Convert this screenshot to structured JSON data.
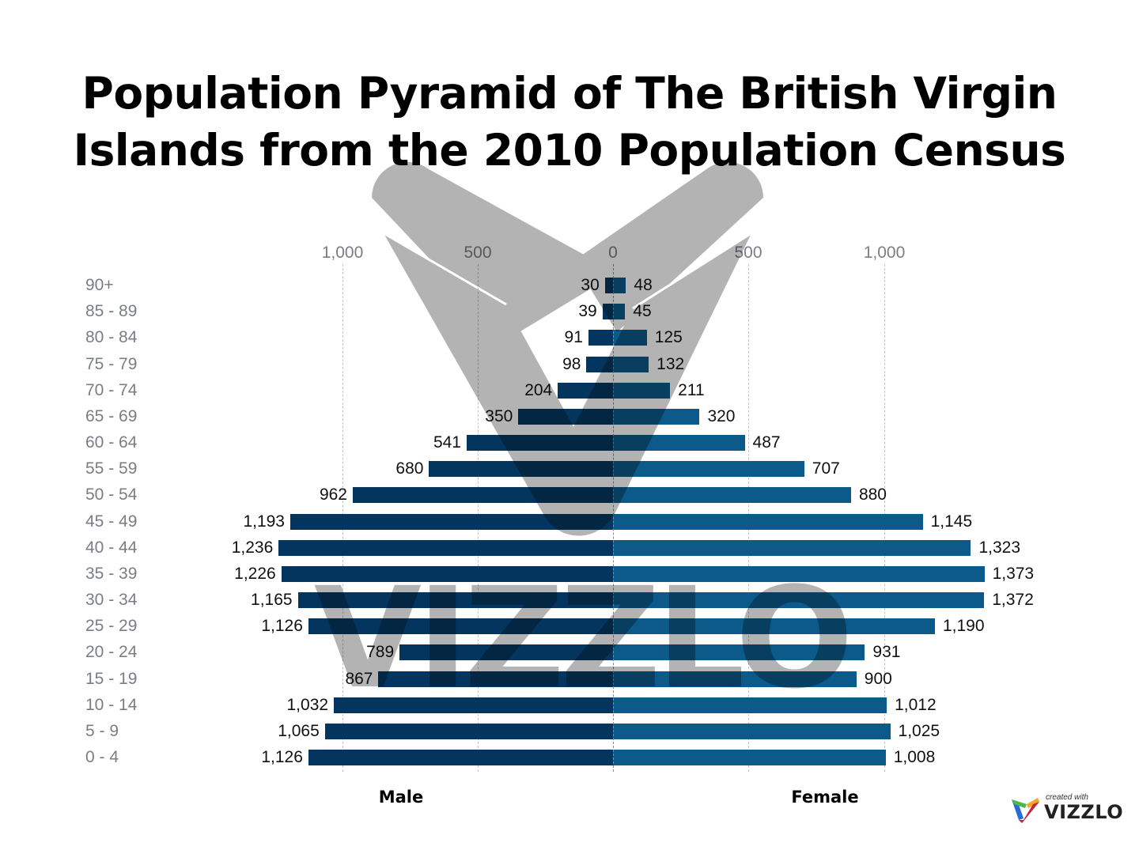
{
  "title": {
    "line1": "Population Pyramid of The British Virgin",
    "line2": "Islands from the 2010 Population Census"
  },
  "axis": {
    "ticks_left": [
      "1,000",
      "500",
      "0"
    ],
    "ticks_right": [
      "500",
      "1,000"
    ]
  },
  "legend": {
    "male": "Male",
    "female": "Female"
  },
  "colors": {
    "male": "#03355f",
    "female": "#0b5a8a",
    "watermark": "#b3b3b3"
  },
  "branding": {
    "watermark_text": "VIZZLO",
    "created_with": "created with",
    "brand": "VIZZLO"
  },
  "rows": [
    {
      "age": "90+",
      "male": 30,
      "female": 48,
      "male_label": "30",
      "female_label": "48"
    },
    {
      "age": "85 - 89",
      "male": 39,
      "female": 45,
      "male_label": "39",
      "female_label": "45"
    },
    {
      "age": "80 - 84",
      "male": 91,
      "female": 125,
      "male_label": "91",
      "female_label": "125"
    },
    {
      "age": "75 - 79",
      "male": 98,
      "female": 132,
      "male_label": "98",
      "female_label": "132"
    },
    {
      "age": "70 - 74",
      "male": 204,
      "female": 211,
      "male_label": "204",
      "female_label": "211"
    },
    {
      "age": "65 - 69",
      "male": 350,
      "female": 320,
      "male_label": "350",
      "female_label": "320"
    },
    {
      "age": "60 - 64",
      "male": 541,
      "female": 487,
      "male_label": "541",
      "female_label": "487"
    },
    {
      "age": "55 - 59",
      "male": 680,
      "female": 707,
      "male_label": "680",
      "female_label": "707"
    },
    {
      "age": "50 - 54",
      "male": 962,
      "female": 880,
      "male_label": "962",
      "female_label": "880"
    },
    {
      "age": "45 - 49",
      "male": 1193,
      "female": 1145,
      "male_label": "1,193",
      "female_label": "1,145"
    },
    {
      "age": "40 - 44",
      "male": 1236,
      "female": 1323,
      "male_label": "1,236",
      "female_label": "1,323"
    },
    {
      "age": "35 - 39",
      "male": 1226,
      "female": 1373,
      "male_label": "1,226",
      "female_label": "1,373"
    },
    {
      "age": "30 - 34",
      "male": 1165,
      "female": 1372,
      "male_label": "1,165",
      "female_label": "1,372"
    },
    {
      "age": "25 - 29",
      "male": 1126,
      "female": 1190,
      "male_label": "1,126",
      "female_label": "1,190"
    },
    {
      "age": "20 - 24",
      "male": 789,
      "female": 931,
      "male_label": "789",
      "female_label": "931"
    },
    {
      "age": "15 - 19",
      "male": 867,
      "female": 900,
      "male_label": "867",
      "female_label": "900"
    },
    {
      "age": "10 - 14",
      "male": 1032,
      "female": 1012,
      "male_label": "1,032",
      "female_label": "1,012"
    },
    {
      "age": "5 - 9",
      "male": 1065,
      "female": 1025,
      "male_label": "1,065",
      "female_label": "1,025"
    },
    {
      "age": "0 - 4",
      "male": 1126,
      "female": 1008,
      "male_label": "1,126",
      "female_label": "1,008"
    }
  ],
  "chart_data": {
    "type": "bar",
    "orientation": "horizontal",
    "subtype": "population-pyramid",
    "title": "Population Pyramid of The British Virgin Islands from the 2010 Population Census",
    "xlabel": "",
    "ylabel": "",
    "categories": [
      "90+",
      "85 - 89",
      "80 - 84",
      "75 - 79",
      "70 - 74",
      "65 - 69",
      "60 - 64",
      "55 - 59",
      "50 - 54",
      "45 - 49",
      "40 - 44",
      "35 - 39",
      "30 - 34",
      "25 - 29",
      "20 - 24",
      "15 - 19",
      "10 - 14",
      "5 - 9",
      "0 - 4"
    ],
    "series": [
      {
        "name": "Male",
        "side": "left",
        "color": "#03355f",
        "values": [
          30,
          39,
          91,
          98,
          204,
          350,
          541,
          680,
          962,
          1193,
          1236,
          1226,
          1165,
          1126,
          789,
          867,
          1032,
          1065,
          1126
        ]
      },
      {
        "name": "Female",
        "side": "right",
        "color": "#0b5a8a",
        "values": [
          48,
          45,
          125,
          132,
          211,
          320,
          487,
          707,
          880,
          1145,
          1323,
          1373,
          1372,
          1190,
          931,
          900,
          1012,
          1025,
          1008
        ]
      }
    ],
    "xlim": [
      -1000,
      1000
    ],
    "x_ticks": [
      "1,000",
      "500",
      "0",
      "500",
      "1,000"
    ],
    "grid": "vertical dashed",
    "legend_position": "bottom",
    "data_labels": true
  }
}
